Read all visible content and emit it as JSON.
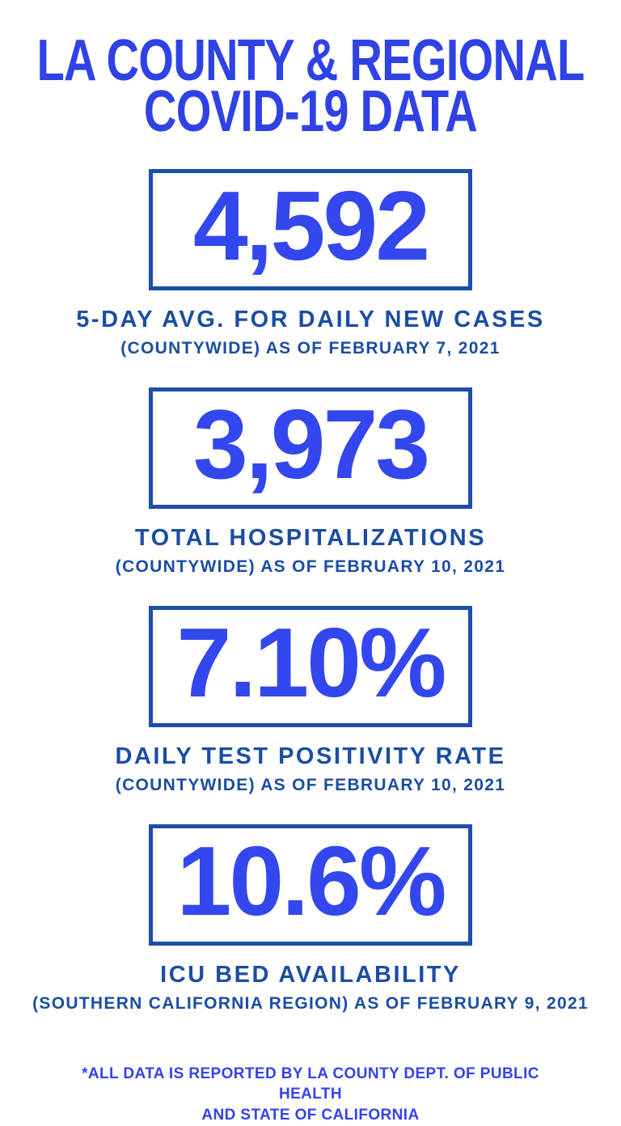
{
  "page": {
    "title_line1": "LA COUNTY & REGIONAL",
    "title_line2": "COVID-19 DATA"
  },
  "colors": {
    "accent_bright_blue": "#3347ef",
    "title_blue": "#2f42e6",
    "label_navy": "#1b4da3",
    "box_border_blue": "#1d4fa8",
    "background": "#ffffff"
  },
  "stats": [
    {
      "value": "4,592",
      "label": "5-DAY AVG. FOR DAILY NEW CASES",
      "detail": "(COUNTYWIDE) AS OF FEBRUARY 7, 2021"
    },
    {
      "value": "3,973",
      "label": "TOTAL HOSPITALIZATIONS",
      "detail": "(COUNTYWIDE) AS OF FEBRUARY 10, 2021"
    },
    {
      "value": "7.10%",
      "label": "DAILY TEST POSITIVITY RATE",
      "detail": "(COUNTYWIDE) AS OF FEBRUARY 10, 2021"
    },
    {
      "value": "10.6%",
      "label": "ICU BED AVAILABILITY",
      "detail": "(SOUTHERN CALIFORNIA REGION) AS OF FEBRUARY 9, 2021"
    }
  ],
  "footer": {
    "line1": "*ALL DATA IS REPORTED BY LA COUNTY DEPT. OF PUBLIC HEALTH",
    "line2": "AND STATE OF CALIFORNIA"
  }
}
